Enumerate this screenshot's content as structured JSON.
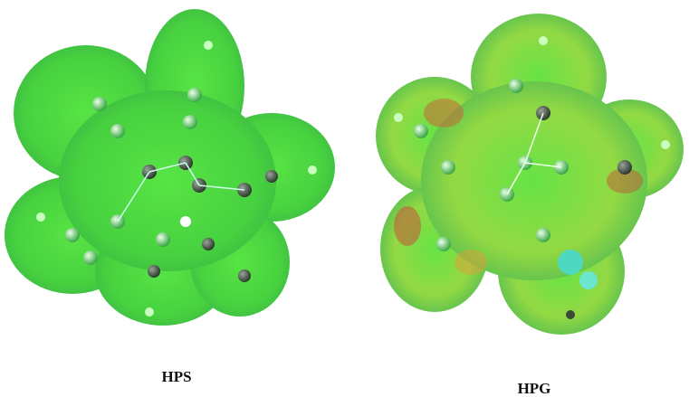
{
  "panels": [
    {
      "label": "HPS"
    },
    {
      "label": "HPG"
    }
  ]
}
